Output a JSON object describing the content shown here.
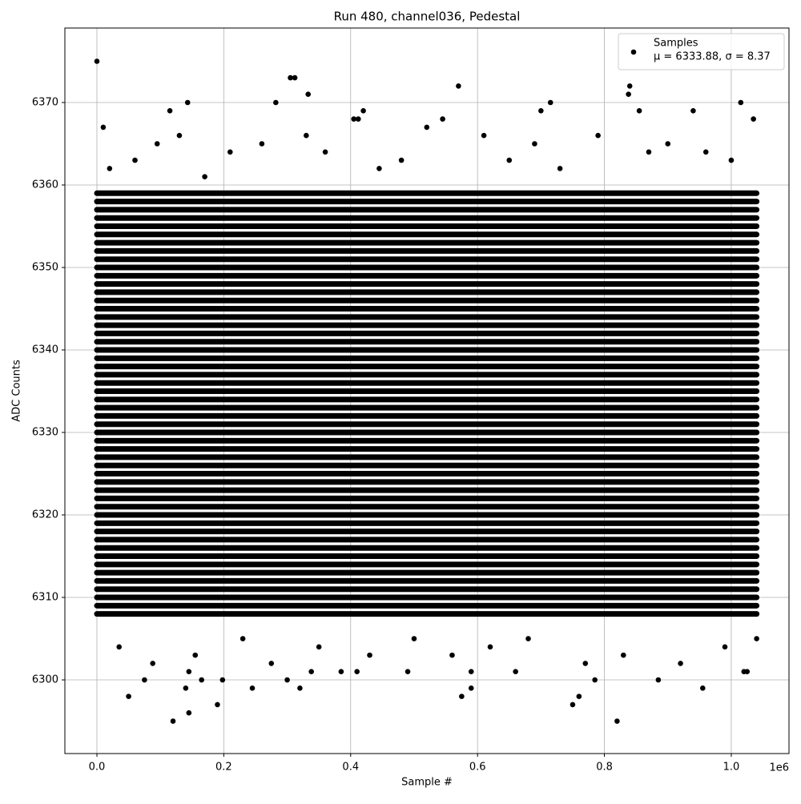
{
  "chart_data": {
    "type": "scatter",
    "title": "Run 480, channel036, Pedestal",
    "xlabel": "Sample #",
    "ylabel": "ADC Counts",
    "x_offset_label": "1e6",
    "xlim": [
      -50500,
      1091000
    ],
    "ylim": [
      6291.07,
      6379.03
    ],
    "xticks": [
      {
        "value": 0,
        "label": "0.0"
      },
      {
        "value": 200000,
        "label": "0.2"
      },
      {
        "value": 400000,
        "label": "0.4"
      },
      {
        "value": 600000,
        "label": "0.6"
      },
      {
        "value": 800000,
        "label": "0.8"
      },
      {
        "value": 1000000,
        "label": "1.0"
      }
    ],
    "yticks": [
      6300,
      6310,
      6320,
      6330,
      6340,
      6350,
      6360,
      6370
    ],
    "grid": true,
    "legend_position": "upper right",
    "stats_label": "μ = 6333.88, σ = 8.37",
    "levels": [
      6308,
      6309,
      6310,
      6311,
      6312,
      6313,
      6314,
      6315,
      6316,
      6317,
      6318,
      6319,
      6320,
      6321,
      6322,
      6323,
      6324,
      6325,
      6326,
      6327,
      6328,
      6329,
      6330,
      6331,
      6332,
      6333,
      6334,
      6335,
      6336,
      6337,
      6338,
      6339,
      6340,
      6341,
      6342,
      6343,
      6344,
      6345,
      6346,
      6347,
      6348,
      6349,
      6350,
      6351,
      6352,
      6353,
      6354,
      6355,
      6356,
      6357,
      6358,
      6359
    ],
    "level_x": [
      0,
      1040000
    ],
    "series": [
      {
        "name": "Samples",
        "color": "#000000",
        "x": [
          0,
          50000,
          120000,
          145000,
          190000,
          140000,
          245000,
          320000,
          305000,
          312000,
          333000,
          282000,
          143000,
          570000,
          575000,
          590000,
          715000,
          750000,
          760000,
          820000,
          840000,
          838000,
          955000,
          1015000,
          885000,
          75000,
          115000,
          10000,
          420000,
          700000,
          855000,
          940000,
          1035000,
          405000,
          412000,
          545000,
          300000,
          165000,
          198000,
          785000,
          1020000,
          1025000,
          660000,
          490000,
          338000,
          385000,
          410000,
          145000,
          590000,
          20000,
          60000,
          95000,
          130000,
          170000,
          210000,
          260000,
          330000,
          360000,
          445000,
          480000,
          520000,
          610000,
          650000,
          690000,
          730000,
          790000,
          870000,
          900000,
          960000,
          1000000,
          35000,
          88000,
          155000,
          230000,
          275000,
          350000,
          430000,
          500000,
          560000,
          620000,
          680000,
          770000,
          830000,
          920000,
          990000,
          1040000
        ],
        "y": [
          6375,
          6298,
          6295,
          6296,
          6297,
          6299,
          6299,
          6299,
          6373,
          6373,
          6371,
          6370,
          6370,
          6372,
          6298,
          6299,
          6370,
          6297,
          6298,
          6295,
          6372,
          6371,
          6299,
          6370,
          6300,
          6300,
          6369,
          6367,
          6369,
          6369,
          6369,
          6369,
          6368,
          6368,
          6368,
          6368,
          6300,
          6300,
          6300,
          6300,
          6301,
          6301,
          6301,
          6301,
          6301,
          6301,
          6301,
          6301,
          6301,
          6362,
          6363,
          6365,
          6366,
          6361,
          6364,
          6365,
          6366,
          6364,
          6362,
          6363,
          6367,
          6366,
          6363,
          6365,
          6362,
          6366,
          6364,
          6365,
          6364,
          6363,
          6304,
          6302,
          6303,
          6305,
          6302,
          6304,
          6303,
          6305,
          6303,
          6304,
          6305,
          6302,
          6303,
          6302,
          6304,
          6305
        ]
      }
    ]
  }
}
